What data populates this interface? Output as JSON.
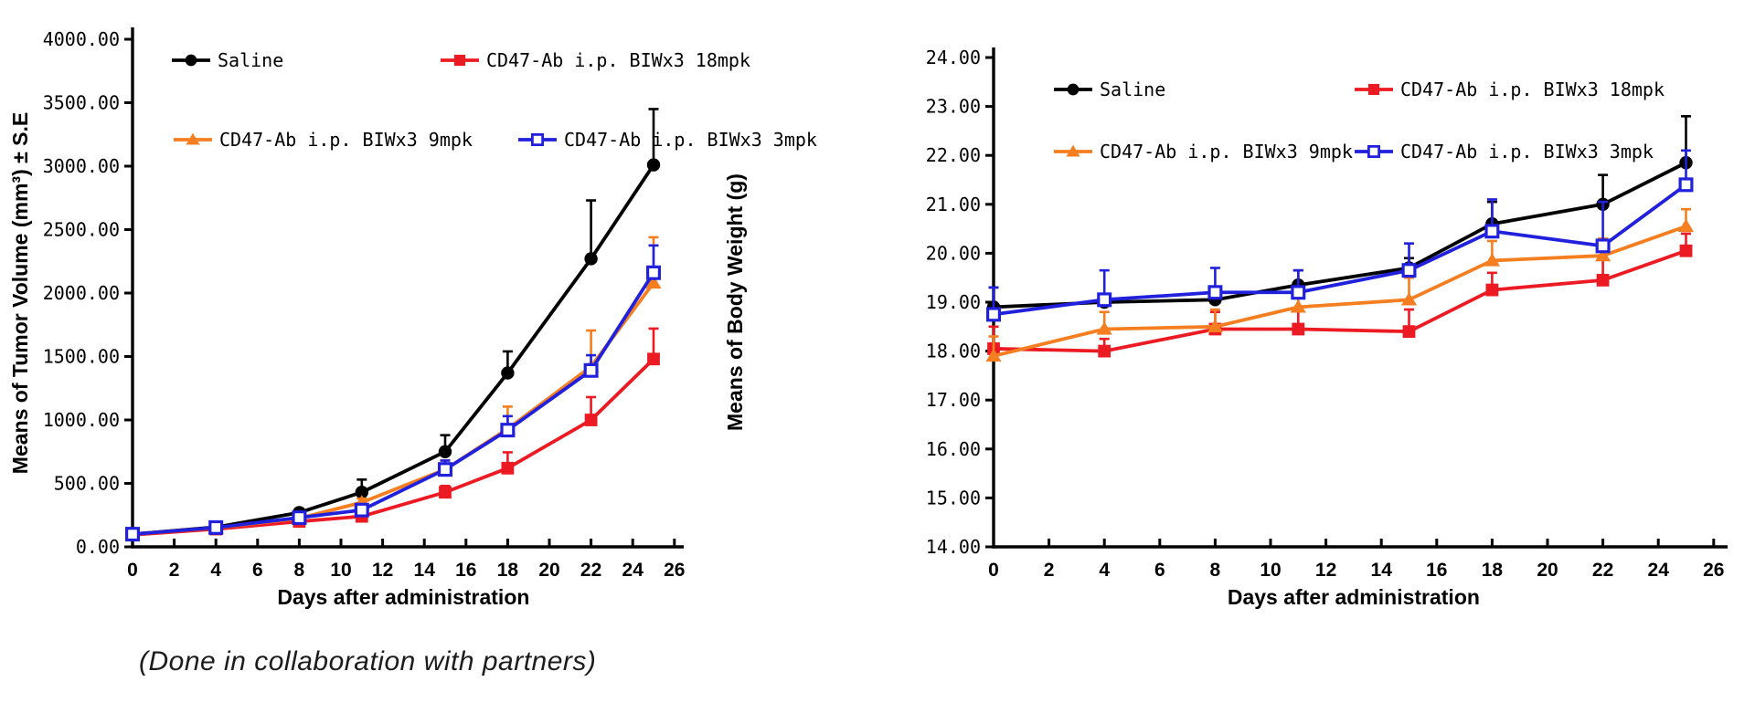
{
  "page": {
    "background": "#ffffff",
    "caption": "(Done in collaboration with partners)"
  },
  "chart_data": [
    {
      "id": "tumor-volume",
      "type": "line",
      "title": "",
      "xlabel": "Days after administration",
      "ylabel": "Means of Tumor Volume (mm³) ± S.E",
      "x": [
        0,
        4,
        8,
        11,
        15,
        18,
        22,
        25
      ],
      "xticks": [
        0,
        2,
        4,
        6,
        8,
        10,
        12,
        14,
        16,
        18,
        20,
        22,
        24,
        26
      ],
      "ylim": [
        0,
        4000
      ],
      "ytick_step": 500,
      "ytick_labels": [
        "0.00",
        "500.00",
        "1000.00",
        "1500.00",
        "2000.00",
        "2500.00",
        "3000.00",
        "3500.00",
        "4000.00"
      ],
      "grid": false,
      "legend_position": "top-inside-two-columns",
      "error_bars": "upper-standard-error",
      "series": [
        {
          "name": "Saline",
          "color": "#000000",
          "marker": "circle",
          "values": [
            100,
            155,
            270,
            430,
            750,
            1370,
            2270,
            3010
          ],
          "se": [
            10,
            15,
            30,
            100,
            130,
            170,
            460,
            440
          ]
        },
        {
          "name": "CD47-Ab i.p. BIWx3 18mpk",
          "color": "#ec1b23",
          "marker": "square",
          "values": [
            95,
            140,
            200,
            240,
            430,
            620,
            1000,
            1480
          ],
          "se": [
            8,
            12,
            18,
            25,
            50,
            125,
            180,
            240
          ]
        },
        {
          "name": "CD47-Ab i.p. BIWx3 9mpk",
          "color": "#f57e20",
          "marker": "triangle",
          "values": [
            100,
            150,
            225,
            350,
            610,
            930,
            1420,
            2080
          ],
          "se": [
            8,
            12,
            20,
            30,
            70,
            175,
            285,
            360
          ]
        },
        {
          "name": "CD47-Ab i.p. BIWx3 3mpk",
          "color": "#2020dd",
          "marker": "open-square",
          "values": [
            100,
            152,
            230,
            290,
            610,
            920,
            1390,
            2160
          ],
          "se": [
            8,
            12,
            20,
            30,
            70,
            110,
            120,
            215
          ]
        }
      ]
    },
    {
      "id": "body-weight",
      "type": "line",
      "title": "",
      "xlabel": "Days after administration",
      "ylabel": "Means of Body Weight (g)",
      "x": [
        0,
        4,
        8,
        11,
        15,
        18,
        22,
        25
      ],
      "xticks": [
        0,
        2,
        4,
        6,
        8,
        10,
        12,
        14,
        16,
        18,
        20,
        22,
        24,
        26
      ],
      "ylim": [
        14,
        24
      ],
      "ytick_step": 1,
      "ytick_labels": [
        "14.00",
        "15.00",
        "16.00",
        "17.00",
        "18.00",
        "19.00",
        "20.00",
        "21.00",
        "22.00",
        "23.00",
        "24.00"
      ],
      "grid": false,
      "legend_position": "top-inside-two-columns",
      "error_bars": "upper-standard-error",
      "series": [
        {
          "name": "Saline",
          "color": "#000000",
          "marker": "circle",
          "values": [
            18.9,
            19.0,
            19.05,
            19.35,
            19.7,
            20.6,
            21.0,
            21.85
          ],
          "se": [
            0.4,
            0.15,
            0.15,
            0.3,
            0.2,
            0.45,
            0.6,
            0.95
          ]
        },
        {
          "name": "CD47-Ab i.p. BIWx3 18mpk",
          "color": "#ec1b23",
          "marker": "square",
          "values": [
            18.05,
            18.0,
            18.45,
            18.45,
            18.4,
            19.25,
            19.45,
            20.05
          ],
          "se": [
            0.45,
            0.25,
            0.35,
            0.4,
            0.45,
            0.35,
            0.45,
            0.35
          ]
        },
        {
          "name": "CD47-Ab i.p. BIWx3 9mpk",
          "color": "#f57e20",
          "marker": "triangle",
          "values": [
            17.9,
            18.45,
            18.5,
            18.9,
            19.05,
            19.85,
            19.95,
            20.55
          ],
          "se": [
            0.4,
            0.35,
            0.35,
            0.3,
            0.45,
            0.4,
            0.35,
            0.35
          ]
        },
        {
          "name": "CD47-Ab i.p. BIWx3 3mpk",
          "color": "#2020dd",
          "marker": "open-square",
          "values": [
            18.75,
            19.05,
            19.2,
            19.2,
            19.65,
            20.45,
            20.15,
            21.4
          ],
          "se": [
            0.55,
            0.6,
            0.5,
            0.45,
            0.55,
            0.65,
            0.9,
            0.7
          ]
        }
      ]
    }
  ]
}
